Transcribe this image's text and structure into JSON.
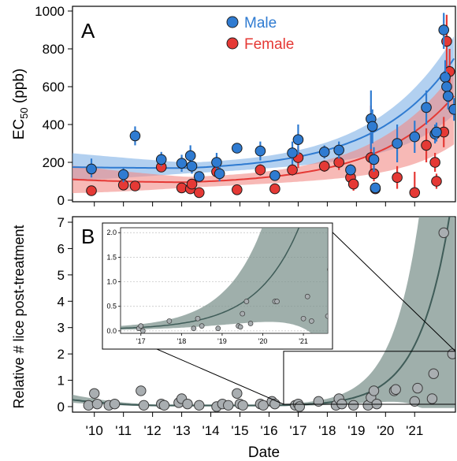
{
  "figure": {
    "xlabel": "Date"
  },
  "chart_data": [
    {
      "type": "scatter",
      "panel_label": "A",
      "ylabel_main": "EC",
      "ylabel_sub": "50",
      "ylabel_unit": " (ppb)",
      "ylim": [
        0,
        1000
      ],
      "yticks": [
        0,
        200,
        400,
        600,
        800,
        1000
      ],
      "xticks": [
        "'10",
        "'11",
        "'12",
        "'13",
        "'14",
        "'15",
        "'16",
        "'17",
        "'18",
        "'19",
        "'20",
        "'21"
      ],
      "legend_position": "top-center",
      "series": [
        {
          "name": "Male",
          "color": "#2f7bd1",
          "band_color": "#7fb0e6",
          "fit": {
            "min": 170,
            "at_start": 175,
            "at_end": 760,
            "band_lo_end": 460,
            "band_hi_end": 880
          },
          "points": [
            {
              "x": 2009.9,
              "y": 165,
              "err": [
                120,
                220
              ]
            },
            {
              "x": 2011.0,
              "y": 135,
              "err": [
                95,
                175
              ]
            },
            {
              "x": 2011.4,
              "y": 340,
              "err": [
                290,
                390
              ]
            },
            {
              "x": 2012.3,
              "y": 215,
              "err": [
                180,
                255
              ]
            },
            {
              "x": 2013.0,
              "y": 195,
              "err": [
                150,
                240
              ]
            },
            {
              "x": 2013.3,
              "y": 235,
              "err": [
                180,
                290
              ]
            },
            {
              "x": 2013.35,
              "y": 180,
              "err": [
                140,
                220
              ]
            },
            {
              "x": 2013.6,
              "y": 125,
              "err": [
                100,
                150
              ]
            },
            {
              "x": 2014.2,
              "y": 200,
              "err": [
                150,
                250
              ]
            },
            {
              "x": 2014.3,
              "y": 140,
              "err": [
                100,
                180
              ]
            },
            {
              "x": 2014.9,
              "y": 275,
              "err": [
                260,
                290
              ]
            },
            {
              "x": 2015.7,
              "y": 260,
              "err": [
                210,
                310
              ]
            },
            {
              "x": 2016.2,
              "y": 130,
              "err": [
                110,
                150
              ]
            },
            {
              "x": 2016.8,
              "y": 250,
              "err": [
                190,
                310
              ]
            },
            {
              "x": 2017.0,
              "y": 320,
              "err": [
                240,
                400
              ]
            },
            {
              "x": 2017.9,
              "y": 255,
              "err": [
                220,
                290
              ]
            },
            {
              "x": 2018.4,
              "y": 265,
              "err": [
                220,
                310
              ]
            },
            {
              "x": 2018.8,
              "y": 160,
              "err": [
                130,
                190
              ]
            },
            {
              "x": 2019.5,
              "y": 430,
              "err": [
                270,
                580
              ]
            },
            {
              "x": 2019.55,
              "y": 390,
              "err": [
                300,
                480
              ]
            },
            {
              "x": 2019.6,
              "y": 215,
              "err": [
                150,
                280
              ]
            },
            {
              "x": 2019.65,
              "y": 65,
              "err": [
                50,
                80
              ]
            },
            {
              "x": 2020.4,
              "y": 300,
              "err": [
                200,
                400
              ]
            },
            {
              "x": 2021.0,
              "y": 335,
              "err": [
                250,
                420
              ]
            },
            {
              "x": 2021.4,
              "y": 490,
              "err": [
                400,
                580
              ]
            },
            {
              "x": 2021.7,
              "y": 350,
              "err": [
                300,
                400
              ]
            },
            {
              "x": 2021.75,
              "y": 360,
              "err": [
                310,
                410
              ]
            },
            {
              "x": 2022.0,
              "y": 900,
              "err": [
                800,
                990
              ]
            },
            {
              "x": 2022.05,
              "y": 650,
              "err": [
                560,
                740
              ]
            },
            {
              "x": 2022.1,
              "y": 600,
              "err": [
                520,
                680
              ]
            },
            {
              "x": 2022.15,
              "y": 550,
              "err": [
                480,
                620
              ]
            },
            {
              "x": 2022.35,
              "y": 480,
              "err": [
                420,
                540
              ]
            }
          ]
        },
        {
          "name": "Female",
          "color": "#e53935",
          "band_color": "#f28b86",
          "fit": {
            "min": 95,
            "at_start": 110,
            "at_end": 560,
            "band_lo_end": 300,
            "band_hi_end": 690
          },
          "points": [
            {
              "x": 2009.9,
              "y": 50,
              "err": [
                40,
                60
              ]
            },
            {
              "x": 2011.0,
              "y": 80,
              "err": [
                65,
                95
              ]
            },
            {
              "x": 2011.4,
              "y": 75,
              "err": [
                60,
                90
              ]
            },
            {
              "x": 2012.3,
              "y": 175,
              "err": [
                150,
                200
              ]
            },
            {
              "x": 2013.0,
              "y": 65,
              "err": [
                50,
                80
              ]
            },
            {
              "x": 2013.3,
              "y": 60,
              "err": [
                45,
                75
              ]
            },
            {
              "x": 2013.35,
              "y": 85,
              "err": [
                70,
                100
              ]
            },
            {
              "x": 2013.6,
              "y": 40,
              "err": [
                30,
                50
              ]
            },
            {
              "x": 2014.2,
              "y": 150,
              "err": [
                120,
                180
              ]
            },
            {
              "x": 2014.9,
              "y": 55,
              "err": [
                45,
                65
              ]
            },
            {
              "x": 2015.7,
              "y": 160,
              "err": [
                130,
                190
              ]
            },
            {
              "x": 2016.2,
              "y": 60,
              "err": [
                50,
                70
              ]
            },
            {
              "x": 2016.8,
              "y": 160,
              "err": [
                130,
                190
              ]
            },
            {
              "x": 2017.0,
              "y": 225,
              "err": [
                170,
                280
              ]
            },
            {
              "x": 2017.9,
              "y": 180,
              "err": [
                150,
                210
              ]
            },
            {
              "x": 2018.4,
              "y": 200,
              "err": [
                160,
                240
              ]
            },
            {
              "x": 2018.8,
              "y": 120,
              "err": [
                80,
                160
              ]
            },
            {
              "x": 2018.9,
              "y": 85,
              "err": [
                50,
                120
              ]
            },
            {
              "x": 2019.5,
              "y": 225,
              "err": [
                130,
                500
              ]
            },
            {
              "x": 2019.6,
              "y": 140,
              "err": [
                100,
                180
              ]
            },
            {
              "x": 2019.65,
              "y": 60,
              "err": [
                40,
                80
              ]
            },
            {
              "x": 2020.4,
              "y": 120,
              "err": [
                60,
                180
              ]
            },
            {
              "x": 2021.0,
              "y": 40,
              "err": [
                20,
                150
              ]
            },
            {
              "x": 2021.4,
              "y": 290,
              "err": [
                200,
                380
              ]
            },
            {
              "x": 2021.7,
              "y": 200,
              "err": [
                150,
                250
              ]
            },
            {
              "x": 2021.75,
              "y": 100,
              "err": [
                60,
                140
              ]
            },
            {
              "x": 2022.0,
              "y": 360,
              "err": [
                280,
                440
              ]
            },
            {
              "x": 2022.1,
              "y": 840,
              "err": [
                700,
                980
              ]
            },
            {
              "x": 2022.2,
              "y": 680,
              "err": [
                560,
                800
              ]
            }
          ]
        }
      ]
    },
    {
      "type": "scatter",
      "panel_label": "B",
      "ylabel": "Relative # lice post-treatment",
      "ylim": [
        -0.15,
        7
      ],
      "yticks": [
        0,
        1,
        2,
        3,
        4,
        5,
        6,
        7
      ],
      "xticks": [
        "'10",
        "'11",
        "'12",
        "'13",
        "'14",
        "'15",
        "'16",
        "'17",
        "'18",
        "'19",
        "'20",
        "'21"
      ],
      "series": [
        {
          "color": "#a9aeb1",
          "fit_color": "#3f5c58",
          "band_color": "#7f948f",
          "points": [
            {
              "x": 2009.8,
              "y": 0.05
            },
            {
              "x": 2010.0,
              "y": 0.5
            },
            {
              "x": 2010.1,
              "y": 0.1
            },
            {
              "x": 2010.5,
              "y": 0.05
            },
            {
              "x": 2010.7,
              "y": 0.1
            },
            {
              "x": 2011.6,
              "y": 0.6
            },
            {
              "x": 2011.7,
              "y": 0.05
            },
            {
              "x": 2012.3,
              "y": 0.1
            },
            {
              "x": 2012.4,
              "y": 0.05
            },
            {
              "x": 2012.9,
              "y": 0.15
            },
            {
              "x": 2013.0,
              "y": 0.3
            },
            {
              "x": 2013.2,
              "y": 0.1
            },
            {
              "x": 2013.6,
              "y": 0.05
            },
            {
              "x": 2014.2,
              "y": 0.0
            },
            {
              "x": 2014.4,
              "y": 0.1
            },
            {
              "x": 2014.6,
              "y": 0.05
            },
            {
              "x": 2014.9,
              "y": 0.5
            },
            {
              "x": 2015.0,
              "y": 0.1
            },
            {
              "x": 2015.1,
              "y": 0.05
            },
            {
              "x": 2015.7,
              "y": 0.1
            },
            {
              "x": 2015.8,
              "y": 0.05
            },
            {
              "x": 2016.1,
              "y": 0.2
            },
            {
              "x": 2016.2,
              "y": 0.1
            },
            {
              "x": 2016.9,
              "y": 0.05
            },
            {
              "x": 2017.0,
              "y": 0.1
            },
            {
              "x": 2017.05,
              "y": 0.0
            },
            {
              "x": 2017.7,
              "y": 0.2
            },
            {
              "x": 2018.3,
              "y": 0.05
            },
            {
              "x": 2018.4,
              "y": 0.3
            },
            {
              "x": 2018.5,
              "y": 0.1
            },
            {
              "x": 2018.9,
              "y": 0.05
            },
            {
              "x": 2019.4,
              "y": 0.05
            },
            {
              "x": 2019.5,
              "y": 0.35
            },
            {
              "x": 2019.6,
              "y": 0.6
            },
            {
              "x": 2019.7,
              "y": 0.1
            },
            {
              "x": 2020.3,
              "y": 0.6
            },
            {
              "x": 2020.35,
              "y": 0.65
            },
            {
              "x": 2021.0,
              "y": 0.2
            },
            {
              "x": 2021.1,
              "y": 0.7
            },
            {
              "x": 2021.6,
              "y": 0.3
            },
            {
              "x": 2021.65,
              "y": 1.25
            },
            {
              "x": 2022.0,
              "y": 6.6
            },
            {
              "x": 2022.3,
              "y": 2.0
            }
          ]
        }
      ],
      "inset": {
        "ylim": [
          -0.05,
          2.1
        ],
        "yticks": [
          "0.0",
          "0.5",
          "1.0",
          "1.5",
          "2.0"
        ],
        "xlim": [
          2016.5,
          2021.6
        ],
        "xticks": [
          "'17",
          "'18",
          "'19",
          "'20",
          "'21"
        ],
        "points": [
          {
            "x": 2016.95,
            "y": 0.05
          },
          {
            "x": 2017.0,
            "y": 0.1
          },
          {
            "x": 2017.05,
            "y": 0.0
          },
          {
            "x": 2017.7,
            "y": 0.2
          },
          {
            "x": 2018.3,
            "y": 0.05
          },
          {
            "x": 2018.4,
            "y": 0.25
          },
          {
            "x": 2018.5,
            "y": 0.1
          },
          {
            "x": 2018.9,
            "y": 0.05
          },
          {
            "x": 2019.4,
            "y": 0.1
          },
          {
            "x": 2019.45,
            "y": 0.08
          },
          {
            "x": 2019.5,
            "y": 0.35
          },
          {
            "x": 2019.6,
            "y": 0.6
          },
          {
            "x": 2019.7,
            "y": 0.15
          },
          {
            "x": 2020.3,
            "y": 0.6
          },
          {
            "x": 2020.35,
            "y": 0.6
          },
          {
            "x": 2021.0,
            "y": 0.25
          },
          {
            "x": 2021.1,
            "y": 0.7
          },
          {
            "x": 2021.2,
            "y": 0.2
          },
          {
            "x": 2021.6,
            "y": 0.3
          },
          {
            "x": 2021.65,
            "y": 1.25
          },
          {
            "x": 2022.0,
            "y": 2.0
          }
        ]
      }
    }
  ]
}
